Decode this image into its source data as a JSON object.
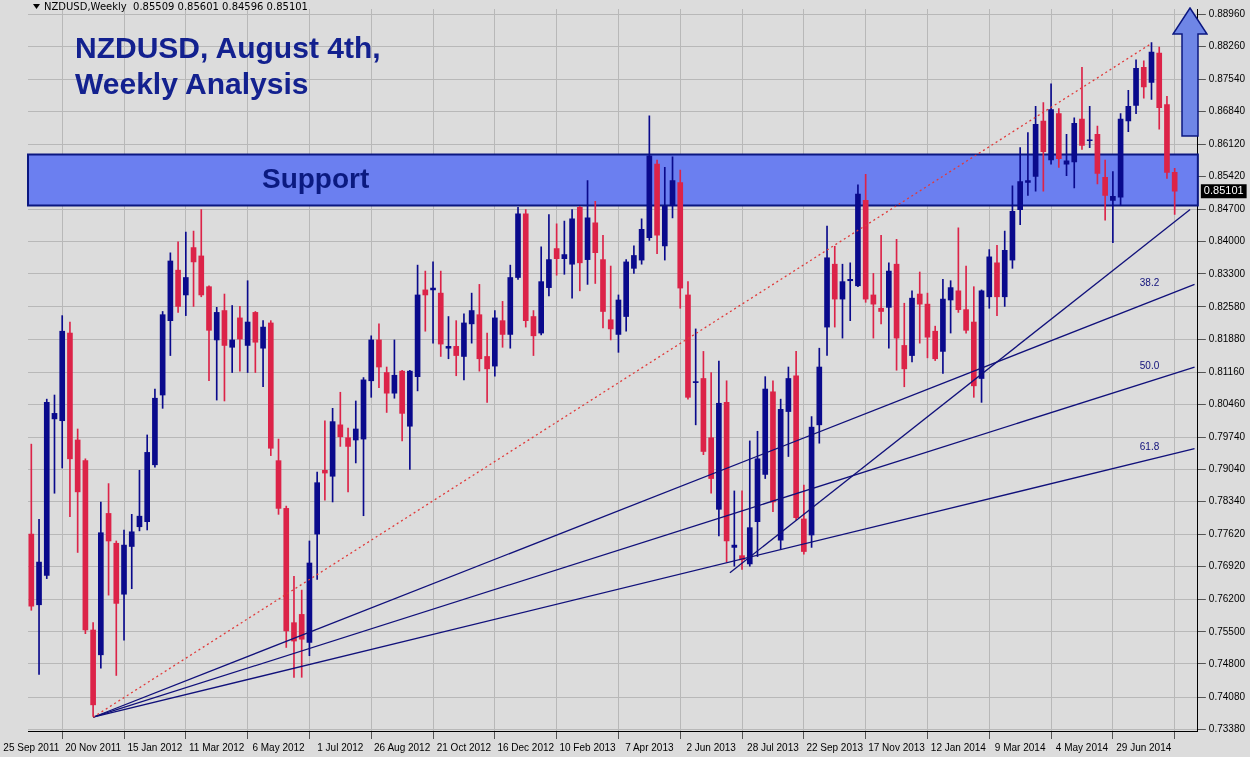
{
  "chart_data": {
    "type": "candlestick",
    "title": "NZDUSD, August 4th, Weekly Analysis",
    "subtitle": "NZDUSD,Weekly  0.85509 0.85601 0.84596 0.85101",
    "x": [
      "2011-09-25",
      "2011-10-02",
      "2011-10-09",
      "2011-10-16",
      "2011-10-23",
      "2011-10-30",
      "2011-11-06",
      "2011-11-13",
      "2011-11-20",
      "2011-11-27",
      "2011-12-04",
      "2011-12-11",
      "2011-12-18",
      "2011-12-25",
      "2012-01-01",
      "2012-01-08",
      "2012-01-15",
      "2012-01-22",
      "2012-01-29",
      "2012-02-05",
      "2012-02-12",
      "2012-02-19",
      "2012-02-26",
      "2012-03-04",
      "2012-03-11",
      "2012-03-18",
      "2012-03-25",
      "2012-04-01",
      "2012-04-08",
      "2012-04-15",
      "2012-04-22",
      "2012-04-29",
      "2012-05-06",
      "2012-05-13",
      "2012-05-20",
      "2012-05-27",
      "2012-06-03",
      "2012-06-10",
      "2012-06-17",
      "2012-06-24",
      "2012-07-01",
      "2012-07-08",
      "2012-07-15",
      "2012-07-22",
      "2012-07-29",
      "2012-08-05",
      "2012-08-12",
      "2012-08-19",
      "2012-08-26",
      "2012-09-02",
      "2012-09-09",
      "2012-09-16",
      "2012-09-23",
      "2012-09-30",
      "2012-10-07",
      "2012-10-14",
      "2012-10-21",
      "2012-10-28",
      "2012-11-04",
      "2012-11-11",
      "2012-11-18",
      "2012-11-25",
      "2012-12-02",
      "2012-12-09",
      "2012-12-16",
      "2012-12-23",
      "2012-12-30",
      "2013-01-06",
      "2013-01-13",
      "2013-01-20",
      "2013-01-27",
      "2013-02-03",
      "2013-02-10",
      "2013-02-17",
      "2013-02-24",
      "2013-03-03",
      "2013-03-10",
      "2013-03-17",
      "2013-03-24",
      "2013-03-31",
      "2013-04-07",
      "2013-04-14",
      "2013-04-21",
      "2013-04-28",
      "2013-05-05",
      "2013-05-12",
      "2013-05-19",
      "2013-05-26",
      "2013-06-02",
      "2013-06-09",
      "2013-06-16",
      "2013-06-23",
      "2013-06-30",
      "2013-07-07",
      "2013-07-14",
      "2013-07-21",
      "2013-07-28",
      "2013-08-04",
      "2013-08-11",
      "2013-08-18",
      "2013-08-25",
      "2013-09-01",
      "2013-09-08",
      "2013-09-15",
      "2013-09-22",
      "2013-09-29",
      "2013-10-06",
      "2013-10-13",
      "2013-10-20",
      "2013-10-27",
      "2013-11-03",
      "2013-11-10",
      "2013-11-17",
      "2013-11-24",
      "2013-12-01",
      "2013-12-08",
      "2013-12-15",
      "2013-12-22",
      "2013-12-29",
      "2014-01-05",
      "2014-01-12",
      "2014-01-19",
      "2014-01-26",
      "2014-02-02",
      "2014-02-09",
      "2014-02-16",
      "2014-02-23",
      "2014-03-02",
      "2014-03-09",
      "2014-03-16",
      "2014-03-23",
      "2014-03-30",
      "2014-04-06",
      "2014-04-13",
      "2014-04-20",
      "2014-04-27",
      "2014-05-04",
      "2014-05-11",
      "2014-05-18",
      "2014-05-25",
      "2014-06-01",
      "2014-06-08",
      "2014-06-15",
      "2014-06-22",
      "2014-06-29",
      "2014-07-06",
      "2014-07-13",
      "2014-07-20",
      "2014-07-27"
    ],
    "ohlc": [
      [
        0.7763,
        0.7959,
        0.7597,
        0.7606
      ],
      [
        0.7609,
        0.7795,
        0.7457,
        0.7702
      ],
      [
        0.7673,
        0.8057,
        0.7666,
        0.805
      ],
      [
        0.8014,
        0.8066,
        0.7852,
        0.8026
      ],
      [
        0.801,
        0.8239,
        0.7907,
        0.8205
      ],
      [
        0.8201,
        0.8225,
        0.7801,
        0.7927
      ],
      [
        0.7968,
        0.7992,
        0.7723,
        0.7855
      ],
      [
        0.7923,
        0.7927,
        0.7546,
        0.7554
      ],
      [
        0.7554,
        0.757,
        0.7366,
        0.7391
      ],
      [
        0.75,
        0.7833,
        0.7471,
        0.7766
      ],
      [
        0.7808,
        0.7873,
        0.763,
        0.7748
      ],
      [
        0.7743,
        0.7748,
        0.7455,
        0.7612
      ],
      [
        0.7632,
        0.7772,
        0.7532,
        0.7739
      ],
      [
        0.7736,
        0.7806,
        0.7644,
        0.7768
      ],
      [
        0.7779,
        0.7902,
        0.777,
        0.7802
      ],
      [
        0.779,
        0.7979,
        0.7772,
        0.7941
      ],
      [
        0.7914,
        0.8079,
        0.7909,
        0.8059
      ],
      [
        0.8066,
        0.8248,
        0.8037,
        0.8241
      ],
      [
        0.8228,
        0.8376,
        0.8152,
        0.8358
      ],
      [
        0.8338,
        0.84,
        0.8246,
        0.8259
      ],
      [
        0.8284,
        0.8421,
        0.8239,
        0.8322
      ],
      [
        0.8387,
        0.8423,
        0.8259,
        0.8356
      ],
      [
        0.8369,
        0.847,
        0.828,
        0.8284
      ],
      [
        0.8302,
        0.8304,
        0.8097,
        0.8207
      ],
      [
        0.8186,
        0.8257,
        0.8055,
        0.8246
      ],
      [
        0.825,
        0.8286,
        0.8053,
        0.8174
      ],
      [
        0.817,
        0.8261,
        0.8115,
        0.8186
      ],
      [
        0.8234,
        0.8259,
        0.8118,
        0.8188
      ],
      [
        0.8174,
        0.8315,
        0.8115,
        0.8225
      ],
      [
        0.8246,
        0.8248,
        0.8115,
        0.8181
      ],
      [
        0.8168,
        0.8228,
        0.8084,
        0.8214
      ],
      [
        0.8223,
        0.8228,
        0.7934,
        0.795
      ],
      [
        0.7923,
        0.797,
        0.7806,
        0.7819
      ],
      [
        0.7819,
        0.7824,
        0.7516,
        0.7552
      ],
      [
        0.757,
        0.7671,
        0.7451,
        0.753
      ],
      [
        0.7588,
        0.7641,
        0.7451,
        0.7534
      ],
      [
        0.7527,
        0.7748,
        0.7498,
        0.77
      ],
      [
        0.7763,
        0.7898,
        0.7664,
        0.7875
      ],
      [
        0.7902,
        0.801,
        0.7837,
        0.7896
      ],
      [
        0.7889,
        0.8037,
        0.7833,
        0.8008
      ],
      [
        0.8001,
        0.8072,
        0.7954,
        0.7975
      ],
      [
        0.7973,
        0.7994,
        0.7855,
        0.7954
      ],
      [
        0.7968,
        0.8053,
        0.7918,
        0.7992
      ],
      [
        0.797,
        0.8104,
        0.7803,
        0.8099
      ],
      [
        0.8097,
        0.8195,
        0.8061,
        0.8186
      ],
      [
        0.8186,
        0.8221,
        0.8082,
        0.8127
      ],
      [
        0.8115,
        0.8127,
        0.8028,
        0.807
      ],
      [
        0.807,
        0.8186,
        0.8059,
        0.8109
      ],
      [
        0.8118,
        0.812,
        0.7966,
        0.8026
      ],
      [
        0.7998,
        0.812,
        0.7904,
        0.8118
      ],
      [
        0.8106,
        0.8349,
        0.8075,
        0.8284
      ],
      [
        0.8295,
        0.8336,
        0.8205,
        0.8284
      ],
      [
        0.8295,
        0.8356,
        0.8179,
        0.8299
      ],
      [
        0.8288,
        0.8336,
        0.815,
        0.8177
      ],
      [
        0.8168,
        0.8237,
        0.8145,
        0.8172
      ],
      [
        0.8172,
        0.8228,
        0.8108,
        0.8152
      ],
      [
        0.815,
        0.8243,
        0.8099,
        0.8223
      ],
      [
        0.8221,
        0.8288,
        0.8179,
        0.825
      ],
      [
        0.8241,
        0.8307,
        0.8118,
        0.8145
      ],
      [
        0.815,
        0.8201,
        0.805,
        0.8123
      ],
      [
        0.8129,
        0.825,
        0.8107,
        0.8234
      ],
      [
        0.8228,
        0.827,
        0.817,
        0.8198
      ],
      [
        0.8198,
        0.8349,
        0.8168,
        0.8322
      ],
      [
        0.8322,
        0.8475,
        0.8318,
        0.8461
      ],
      [
        0.8461,
        0.847,
        0.8214,
        0.8228
      ],
      [
        0.8237,
        0.825,
        0.8152,
        0.8195
      ],
      [
        0.8201,
        0.8389,
        0.8197,
        0.8313
      ],
      [
        0.83,
        0.8459,
        0.8282,
        0.8361
      ],
      [
        0.8385,
        0.8439,
        0.8327,
        0.8363
      ],
      [
        0.8363,
        0.8445,
        0.8329,
        0.8372
      ],
      [
        0.8351,
        0.847,
        0.8277,
        0.845
      ],
      [
        0.8475,
        0.8477,
        0.8293,
        0.8354
      ],
      [
        0.8361,
        0.8533,
        0.8307,
        0.8452
      ],
      [
        0.8441,
        0.8488,
        0.8309,
        0.8376
      ],
      [
        0.8361,
        0.8414,
        0.8212,
        0.8248
      ],
      [
        0.823,
        0.8347,
        0.8186,
        0.821
      ],
      [
        0.8198,
        0.8284,
        0.8159,
        0.8273
      ],
      [
        0.8237,
        0.8361,
        0.8205,
        0.8356
      ],
      [
        0.8342,
        0.8391,
        0.8331,
        0.837
      ],
      [
        0.836,
        0.845,
        0.8351,
        0.8427
      ],
      [
        0.8409,
        0.8674,
        0.8403,
        0.8587
      ],
      [
        0.8569,
        0.8578,
        0.8374,
        0.8414
      ],
      [
        0.8391,
        0.8562,
        0.836,
        0.8477
      ],
      [
        0.8479,
        0.8585,
        0.8452,
        0.8533
      ],
      [
        0.8529,
        0.8556,
        0.8255,
        0.8299
      ],
      [
        0.8284,
        0.8313,
        0.8057,
        0.8061
      ],
      [
        0.8093,
        0.821,
        0.8001,
        0.8095
      ],
      [
        0.8102,
        0.8161,
        0.7936,
        0.7943
      ],
      [
        0.7973,
        0.8115,
        0.7852,
        0.7884
      ],
      [
        0.7817,
        0.814,
        0.7759,
        0.8048
      ],
      [
        0.805,
        0.8097,
        0.7702,
        0.7748
      ],
      [
        0.7734,
        0.7857,
        0.7693,
        0.7739
      ],
      [
        0.7716,
        0.7857,
        0.7686,
        0.7707
      ],
      [
        0.7698,
        0.7966,
        0.7693,
        0.7777
      ],
      [
        0.779,
        0.7987,
        0.7714,
        0.7927
      ],
      [
        0.7893,
        0.8106,
        0.7884,
        0.8079
      ],
      [
        0.8073,
        0.8097,
        0.7812,
        0.7833
      ],
      [
        0.775,
        0.8057,
        0.773,
        0.8035
      ],
      [
        0.803,
        0.8127,
        0.7932,
        0.8102
      ],
      [
        0.8108,
        0.8161,
        0.7794,
        0.7799
      ],
      [
        0.7796,
        0.787,
        0.7719,
        0.7725
      ],
      [
        0.7761,
        0.8019,
        0.7734,
        0.7996
      ],
      [
        0.8001,
        0.8168,
        0.7961,
        0.8127
      ],
      [
        0.8214,
        0.8434,
        0.8152,
        0.8365
      ],
      [
        0.8351,
        0.839,
        0.8214,
        0.8275
      ],
      [
        0.8275,
        0.8351,
        0.819,
        0.8313
      ],
      [
        0.8315,
        0.8354,
        0.8228,
        0.8318
      ],
      [
        0.8304,
        0.8524,
        0.8302,
        0.8504
      ],
      [
        0.849,
        0.8547,
        0.8268,
        0.8275
      ],
      [
        0.8284,
        0.8331,
        0.819,
        0.8264
      ],
      [
        0.8255,
        0.8414,
        0.8221,
        0.8248
      ],
      [
        0.8257,
        0.8354,
        0.8168,
        0.8336
      ],
      [
        0.8351,
        0.8405,
        0.812,
        0.819
      ],
      [
        0.8174,
        0.8266,
        0.8084,
        0.8123
      ],
      [
        0.8152,
        0.8293,
        0.8138,
        0.8277
      ],
      [
        0.8286,
        0.8334,
        0.8179,
        0.8264
      ],
      [
        0.8264,
        0.8288,
        0.8147,
        0.8192
      ],
      [
        0.8205,
        0.8216,
        0.8141,
        0.8145
      ],
      [
        0.8161,
        0.8318,
        0.8113,
        0.8275
      ],
      [
        0.8273,
        0.8315,
        0.8201,
        0.83
      ],
      [
        0.8293,
        0.843,
        0.8246,
        0.8252
      ],
      [
        0.8252,
        0.8347,
        0.8201,
        0.8207
      ],
      [
        0.8225,
        0.8302,
        0.8061,
        0.8086
      ],
      [
        0.8102,
        0.8295,
        0.805,
        0.8293
      ],
      [
        0.828,
        0.8383,
        0.8255,
        0.8367
      ],
      [
        0.8354,
        0.8392,
        0.8239,
        0.828
      ],
      [
        0.828,
        0.8423,
        0.8259,
        0.8381
      ],
      [
        0.836,
        0.8522,
        0.8342,
        0.8466
      ],
      [
        0.847,
        0.8605,
        0.8437,
        0.8531
      ],
      [
        0.8529,
        0.8638,
        0.8501,
        0.8533
      ],
      [
        0.8542,
        0.8695,
        0.851,
        0.8656
      ],
      [
        0.8663,
        0.8703,
        0.851,
        0.8596
      ],
      [
        0.8578,
        0.8744,
        0.8569,
        0.8688
      ],
      [
        0.8679,
        0.869,
        0.8562,
        0.8581
      ],
      [
        0.8569,
        0.8634,
        0.8544,
        0.8576
      ],
      [
        0.8574,
        0.867,
        0.8517,
        0.8658
      ],
      [
        0.8667,
        0.878,
        0.8601,
        0.861
      ],
      [
        0.862,
        0.8695,
        0.8605,
        0.8622
      ],
      [
        0.8634,
        0.8652,
        0.8526,
        0.8549
      ],
      [
        0.854,
        0.8578,
        0.8447,
        0.8501
      ],
      [
        0.849,
        0.8553,
        0.8398,
        0.8499
      ],
      [
        0.8497,
        0.8679,
        0.8479,
        0.8667
      ],
      [
        0.8663,
        0.873,
        0.864,
        0.8695
      ],
      [
        0.8697,
        0.8796,
        0.8679,
        0.8778
      ],
      [
        0.878,
        0.8794,
        0.8713,
        0.8737
      ],
      [
        0.8747,
        0.8834,
        0.871,
        0.8813
      ],
      [
        0.8811,
        0.8824,
        0.8645,
        0.8692
      ],
      [
        0.8699,
        0.8717,
        0.8538,
        0.8551
      ],
      [
        0.85509,
        0.85601,
        0.84596,
        0.85101
      ]
    ],
    "colors": [
      "#dc2348",
      "#0a0a8c",
      "#0a0a8c",
      "#0a0a8c",
      "#0a0a8c",
      "#dc2348",
      "#dc2348",
      "#dc2348",
      "#dc2348",
      "#0a0a8c",
      "#dc2348",
      "#dc2348",
      "#0a0a8c",
      "#0a0a8c",
      "#0a0a8c",
      "#0a0a8c",
      "#0a0a8c",
      "#0a0a8c",
      "#0a0a8c",
      "#dc2348",
      "#0a0a8c",
      "#dc2348",
      "#dc2348",
      "#dc2348",
      "#0a0a8c",
      "#dc2348",
      "#0a0a8c",
      "#dc2348",
      "#0a0a8c",
      "#dc2348",
      "#0a0a8c",
      "#dc2348",
      "#dc2348",
      "#dc2348",
      "#dc2348",
      "#dc2348",
      "#0a0a8c",
      "#0a0a8c",
      "#dc2348",
      "#0a0a8c",
      "#dc2348",
      "#dc2348",
      "#0a0a8c",
      "#0a0a8c",
      "#0a0a8c",
      "#dc2348",
      "#dc2348",
      "#0a0a8c",
      "#dc2348",
      "#0a0a8c",
      "#0a0a8c",
      "#dc2348",
      "#0a0a8c",
      "#dc2348",
      "#0a0a8c",
      "#dc2348",
      "#0a0a8c",
      "#0a0a8c",
      "#dc2348",
      "#dc2348",
      "#0a0a8c",
      "#dc2348",
      "#0a0a8c",
      "#0a0a8c",
      "#dc2348",
      "#dc2348",
      "#0a0a8c",
      "#0a0a8c",
      "#dc2348",
      "#0a0a8c",
      "#0a0a8c",
      "#dc2348",
      "#0a0a8c",
      "#dc2348",
      "#dc2348",
      "#dc2348",
      "#0a0a8c",
      "#0a0a8c",
      "#0a0a8c",
      "#0a0a8c",
      "#0a0a8c",
      "#dc2348",
      "#0a0a8c",
      "#0a0a8c",
      "#dc2348",
      "#dc2348",
      "#0a0a8c",
      "#dc2348",
      "#dc2348",
      "#0a0a8c",
      "#dc2348",
      "#0a0a8c",
      "#dc2348",
      "#0a0a8c",
      "#0a0a8c",
      "#0a0a8c",
      "#dc2348",
      "#0a0a8c",
      "#0a0a8c",
      "#dc2348",
      "#dc2348",
      "#0a0a8c",
      "#0a0a8c",
      "#0a0a8c",
      "#dc2348",
      "#0a0a8c",
      "#0a0a8c",
      "#0a0a8c",
      "#dc2348",
      "#dc2348",
      "#dc2348",
      "#0a0a8c",
      "#dc2348",
      "#dc2348",
      "#0a0a8c",
      "#dc2348",
      "#dc2348",
      "#dc2348",
      "#0a0a8c",
      "#0a0a8c",
      "#dc2348",
      "#dc2348",
      "#dc2348",
      "#0a0a8c",
      "#0a0a8c",
      "#dc2348",
      "#0a0a8c",
      "#0a0a8c",
      "#0a0a8c",
      "#0a0a8c",
      "#0a0a8c",
      "#dc2348",
      "#0a0a8c",
      "#dc2348",
      "#0a0a8c",
      "#0a0a8c",
      "#dc2348",
      "#0a0a8c",
      "#dc2348",
      "#dc2348",
      "#0a0a8c",
      "#0a0a8c",
      "#0a0a8c",
      "#0a0a8c",
      "#dc2348",
      "#0a0a8c",
      "#dc2348",
      "#dc2348",
      "#dc2348"
    ],
    "series": [
      {
        "type": "line",
        "x": [
          "2011-11-20",
          "2014-07-06"
        ],
        "values": [
          0.7364,
          0.8832
        ],
        "color": "#e03a3a",
        "line_style": "dotted"
      },
      {
        "type": "line",
        "name": "38.2",
        "x": [
          "2011-11-20",
          "2014-08-14"
        ],
        "values": [
          0.7364,
          0.8307
        ],
        "color": "#10107a",
        "line_style": "solid"
      },
      {
        "type": "line",
        "name": "50.0",
        "x": [
          "2011-11-20",
          "2014-08-14"
        ],
        "values": [
          0.7364,
          0.8127
        ],
        "color": "#10107a",
        "line_style": "solid"
      },
      {
        "type": "line",
        "name": "61.8",
        "x": [
          "2011-11-20",
          "2014-08-14"
        ],
        "values": [
          0.7364,
          0.7949
        ],
        "color": "#10107a",
        "line_style": "solid"
      },
      {
        "type": "line",
        "x": [
          "2013-06-19",
          "2014-08-10"
        ],
        "values": [
          0.7679,
          0.847
        ],
        "color": "#10107a",
        "line_style": "solid"
      }
    ],
    "bands": [
      {
        "axis": "y",
        "from": 0.8479,
        "to": 0.859,
        "label": "Support",
        "color": "#6b7ff0"
      }
    ],
    "annotations": [
      "0.85101"
    ],
    "xlim": [
      "2011-09-22",
      "2014-08-17"
    ],
    "xticks": [
      {
        "value": "2011-09-25",
        "label": "25 Sep 2011"
      },
      {
        "value": "2011-11-20",
        "label": "20 Nov 2011"
      },
      {
        "value": "2012-01-15",
        "label": "15 Jan 2012"
      },
      {
        "value": "2012-03-11",
        "label": "11 Mar 2012"
      },
      {
        "value": "2012-05-06",
        "label": "6 May 2012"
      },
      {
        "value": "2012-07-01",
        "label": "1 Jul 2012"
      },
      {
        "value": "2012-08-26",
        "label": "26 Aug 2012"
      },
      {
        "value": "2012-10-21",
        "label": "21 Oct 2012"
      },
      {
        "value": "2012-12-16",
        "label": "16 Dec 2012"
      },
      {
        "value": "2013-02-10",
        "label": "10 Feb 2013"
      },
      {
        "value": "2013-04-07",
        "label": "7 Apr 2013"
      },
      {
        "value": "2013-06-02",
        "label": "2 Jun 2013"
      },
      {
        "value": "2013-07-28",
        "label": "28 Jul 2013"
      },
      {
        "value": "2013-09-22",
        "label": "22 Sep 2013"
      },
      {
        "value": "2013-11-17",
        "label": "17 Nov 2013"
      },
      {
        "value": "2014-01-12",
        "label": "12 Jan 2014"
      },
      {
        "value": "2014-03-09",
        "label": "9 Mar 2014"
      },
      {
        "value": "2014-05-04",
        "label": "4 May 2014"
      },
      {
        "value": "2014-06-29",
        "label": "29 Jun 2014"
      }
    ],
    "ylim": [
      0.7334,
      0.8907
    ],
    "yticks": [
      {
        "value": 0.8896,
        "label": "0.88960"
      },
      {
        "value": 0.8826,
        "label": "0.88260"
      },
      {
        "value": 0.8754,
        "label": "0.87540"
      },
      {
        "value": 0.8684,
        "label": "0.86840"
      },
      {
        "value": 0.8612,
        "label": "0.86120"
      },
      {
        "value": 0.8542,
        "label": "0.85420"
      },
      {
        "value": 0.847,
        "label": "0.84700"
      },
      {
        "value": 0.84,
        "label": "0.84000"
      },
      {
        "value": 0.833,
        "label": "0.83300"
      },
      {
        "value": 0.8258,
        "label": "0.82580"
      },
      {
        "value": 0.8188,
        "label": "0.81880"
      },
      {
        "value": 0.8116,
        "label": "0.81160"
      },
      {
        "value": 0.8046,
        "label": "0.80460"
      },
      {
        "value": 0.7974,
        "label": "0.79740"
      },
      {
        "value": 0.7904,
        "label": "0.79040"
      },
      {
        "value": 0.7834,
        "label": "0.78340"
      },
      {
        "value": 0.7762,
        "label": "0.77620"
      },
      {
        "value": 0.7692,
        "label": "0.76920"
      },
      {
        "value": 0.762,
        "label": "0.76200"
      },
      {
        "value": 0.755,
        "label": "0.75500"
      },
      {
        "value": 0.748,
        "label": "0.74800"
      },
      {
        "value": 0.7408,
        "label": "0.74080"
      },
      {
        "value": 0.7338,
        "label": "0.73380"
      }
    ],
    "grid": true
  }
}
